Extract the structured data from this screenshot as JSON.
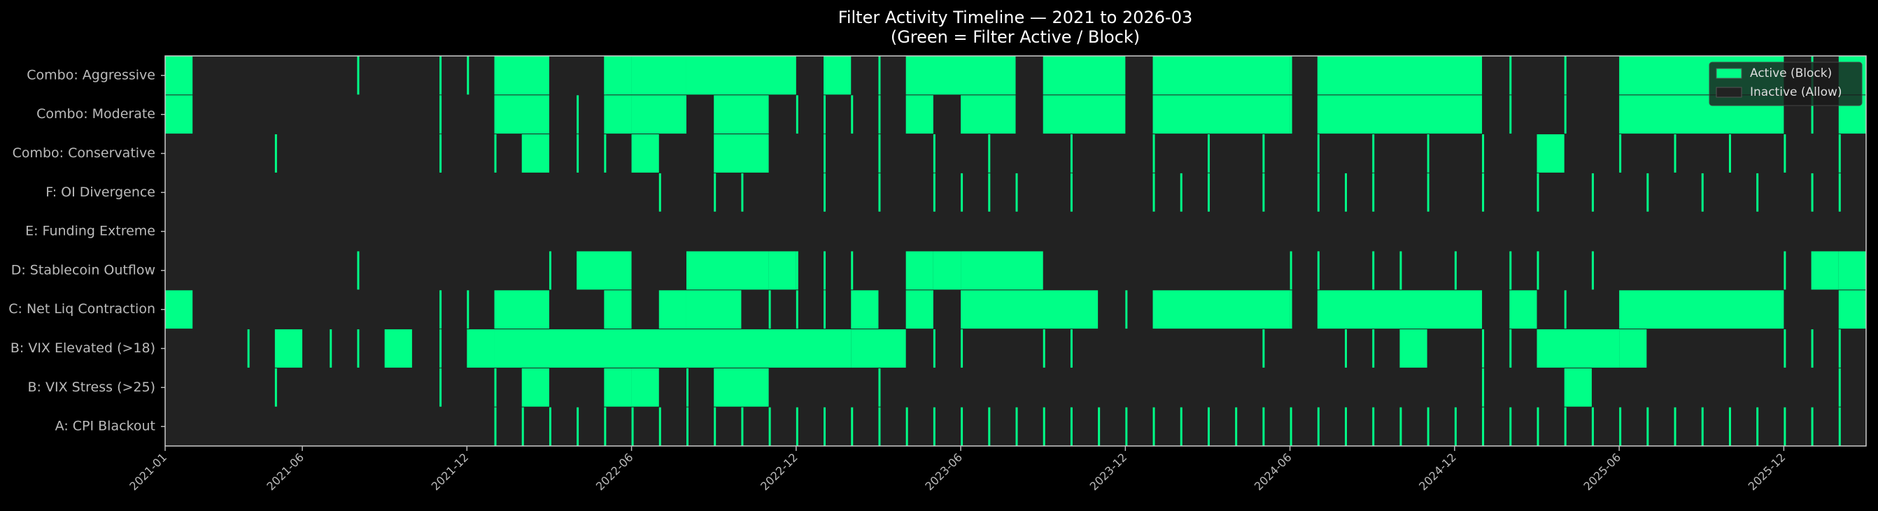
{
  "chart_data": {
    "type": "timeline",
    "title": "Filter Activity Timeline — 2021 to 2026-03",
    "subtitle": "(Green = Filter Active / Block)",
    "xlim": [
      "2021-01",
      "2026-03"
    ],
    "xticks": [
      "2021-01",
      "2021-06",
      "2021-12",
      "2022-06",
      "2022-12",
      "2023-06",
      "2023-12",
      "2024-06",
      "2024-12",
      "2025-06",
      "2025-12"
    ],
    "legend": "upper right",
    "series": [
      {
        "name": "Active (Block)",
        "color": "#00ff87"
      },
      {
        "name": "Inactive (Allow)",
        "color": "#222222"
      }
    ],
    "rows": [
      {
        "name": "Combo: Aggressive",
        "spans": [
          [
            "2021-01",
            "2021-02"
          ],
          [
            "2022-01",
            "2022-03"
          ],
          [
            "2022-05",
            "2022-06"
          ],
          [
            "2022-06",
            "2022-08"
          ],
          [
            "2022-08",
            "2022-12"
          ],
          [
            "2023-01",
            "2023-02"
          ],
          [
            "2023-04",
            "2023-08"
          ],
          [
            "2023-09",
            "2023-12"
          ],
          [
            "2024-01",
            "2024-06"
          ],
          [
            "2024-07",
            "2025-01"
          ],
          [
            "2025-06",
            "2025-12"
          ],
          [
            "2026-02",
            "2026-03"
          ]
        ],
        "events": [
          "2021-08",
          "2021-11",
          "2021-12",
          "2022-05",
          "2023-03",
          "2024-06",
          "2025-02",
          "2025-04",
          "2026-01"
        ]
      },
      {
        "name": "Combo: Moderate",
        "spans": [
          [
            "2021-01",
            "2021-02"
          ],
          [
            "2022-01",
            "2022-03"
          ],
          [
            "2022-05",
            "2022-06"
          ],
          [
            "2022-06",
            "2022-08"
          ],
          [
            "2022-09",
            "2022-11"
          ],
          [
            "2023-04",
            "2023-05"
          ],
          [
            "2023-06",
            "2023-08"
          ],
          [
            "2023-09",
            "2023-12"
          ],
          [
            "2024-01",
            "2024-06"
          ],
          [
            "2024-07",
            "2025-01"
          ],
          [
            "2025-06",
            "2025-12"
          ],
          [
            "2026-02",
            "2026-03"
          ]
        ],
        "events": [
          "2021-11",
          "2022-04",
          "2022-12",
          "2023-01",
          "2023-02",
          "2023-03",
          "2024-06",
          "2025-02",
          "2025-04",
          "2026-01"
        ]
      },
      {
        "name": "Combo: Conservative",
        "spans": [
          [
            "2022-02",
            "2022-03"
          ],
          [
            "2022-06",
            "2022-07"
          ],
          [
            "2022-09",
            "2022-11"
          ],
          [
            "2025-03",
            "2025-04"
          ]
        ],
        "events": [
          "2021-05",
          "2021-11",
          "2022-01",
          "2022-04",
          "2022-05",
          "2023-01",
          "2023-03",
          "2023-05",
          "2023-07",
          "2023-10",
          "2024-01",
          "2024-03",
          "2024-05",
          "2024-07",
          "2024-09",
          "2024-11",
          "2025-01",
          "2025-06",
          "2025-08",
          "2025-10",
          "2025-12",
          "2026-02"
        ]
      },
      {
        "name": "F: OI Divergence",
        "spans": [],
        "events": [
          "2022-07",
          "2022-09",
          "2022-10",
          "2023-01",
          "2023-03",
          "2023-05",
          "2023-06",
          "2023-07",
          "2023-08",
          "2023-10",
          "2024-01",
          "2024-02",
          "2024-03",
          "2024-05",
          "2024-07",
          "2024-08",
          "2024-09",
          "2024-11",
          "2025-01",
          "2025-03",
          "2025-05",
          "2025-07",
          "2025-09",
          "2025-11",
          "2026-01",
          "2026-02"
        ]
      },
      {
        "name": "E: Funding Extreme",
        "spans": [],
        "events": []
      },
      {
        "name": "D: Stablecoin Outflow",
        "spans": [
          [
            "2022-04",
            "2022-06"
          ],
          [
            "2022-08",
            "2022-11"
          ],
          [
            "2022-11",
            "2022-12"
          ],
          [
            "2023-04",
            "2023-05"
          ],
          [
            "2023-05",
            "2023-06"
          ],
          [
            "2023-06",
            "2023-09"
          ],
          [
            "2026-01",
            "2026-02"
          ],
          [
            "2026-02",
            "2026-03"
          ]
        ],
        "events": [
          "2021-08",
          "2022-03",
          "2022-12",
          "2023-01",
          "2023-02",
          "2024-06",
          "2024-07",
          "2024-09",
          "2024-10",
          "2024-12",
          "2025-02",
          "2025-03",
          "2025-05",
          "2025-12"
        ]
      },
      {
        "name": "C: Net Liq Contraction",
        "spans": [
          [
            "2021-01",
            "2021-02"
          ],
          [
            "2022-01",
            "2022-03"
          ],
          [
            "2022-05",
            "2022-06"
          ],
          [
            "2022-07",
            "2022-08"
          ],
          [
            "2022-08",
            "2022-10"
          ],
          [
            "2023-02",
            "2023-03"
          ],
          [
            "2023-04",
            "2023-05"
          ],
          [
            "2023-06",
            "2023-11"
          ],
          [
            "2024-01",
            "2024-06"
          ],
          [
            "2024-07",
            "2025-01"
          ],
          [
            "2025-02",
            "2025-03"
          ],
          [
            "2025-06",
            "2025-12"
          ],
          [
            "2026-02",
            "2026-03"
          ]
        ],
        "events": [
          "2021-11",
          "2021-12",
          "2022-11",
          "2022-12",
          "2023-01",
          "2023-12",
          "2024-06",
          "2025-04"
        ]
      },
      {
        "name": "B: VIX Elevated (>18)",
        "spans": [
          [
            "2021-05",
            "2021-06"
          ],
          [
            "2021-09",
            "2021-10"
          ],
          [
            "2021-12",
            "2022-01"
          ],
          [
            "2022-01",
            "2023-02"
          ],
          [
            "2023-02",
            "2023-04"
          ],
          [
            "2024-10",
            "2024-11"
          ],
          [
            "2025-03",
            "2025-06"
          ],
          [
            "2025-06",
            "2025-07"
          ]
        ],
        "events": [
          "2021-04",
          "2021-07",
          "2021-08",
          "2021-11",
          "2023-05",
          "2023-06",
          "2023-09",
          "2023-10",
          "2024-05",
          "2024-08",
          "2024-09",
          "2025-01",
          "2025-02",
          "2025-12",
          "2026-01",
          "2026-02"
        ]
      },
      {
        "name": "B: VIX Stress (>25)",
        "spans": [
          [
            "2022-02",
            "2022-03"
          ],
          [
            "2022-05",
            "2022-06"
          ],
          [
            "2022-06",
            "2022-07"
          ],
          [
            "2022-09",
            "2022-11"
          ],
          [
            "2025-04",
            "2025-05"
          ]
        ],
        "events": [
          "2021-05",
          "2021-11",
          "2022-01",
          "2022-08",
          "2023-03",
          "2025-01",
          "2026-02"
        ]
      },
      {
        "name": "A: CPI Blackout",
        "spans": [],
        "events": [
          "2022-01",
          "2022-02",
          "2022-03",
          "2022-04",
          "2022-05",
          "2022-06",
          "2022-07",
          "2022-08",
          "2022-09",
          "2022-10",
          "2022-11",
          "2022-12",
          "2023-01",
          "2023-02",
          "2023-03",
          "2023-04",
          "2023-05",
          "2023-06",
          "2023-07",
          "2023-08",
          "2023-09",
          "2023-10",
          "2023-11",
          "2023-12",
          "2024-01",
          "2024-02",
          "2024-03",
          "2024-04",
          "2024-05",
          "2024-06",
          "2024-07",
          "2024-08",
          "2024-09",
          "2024-10",
          "2024-11",
          "2024-12",
          "2025-01",
          "2025-02",
          "2025-03",
          "2025-04",
          "2025-05",
          "2025-06",
          "2025-07",
          "2025-08",
          "2025-09",
          "2025-10",
          "2025-11",
          "2025-12",
          "2026-01",
          "2026-02"
        ]
      }
    ]
  }
}
